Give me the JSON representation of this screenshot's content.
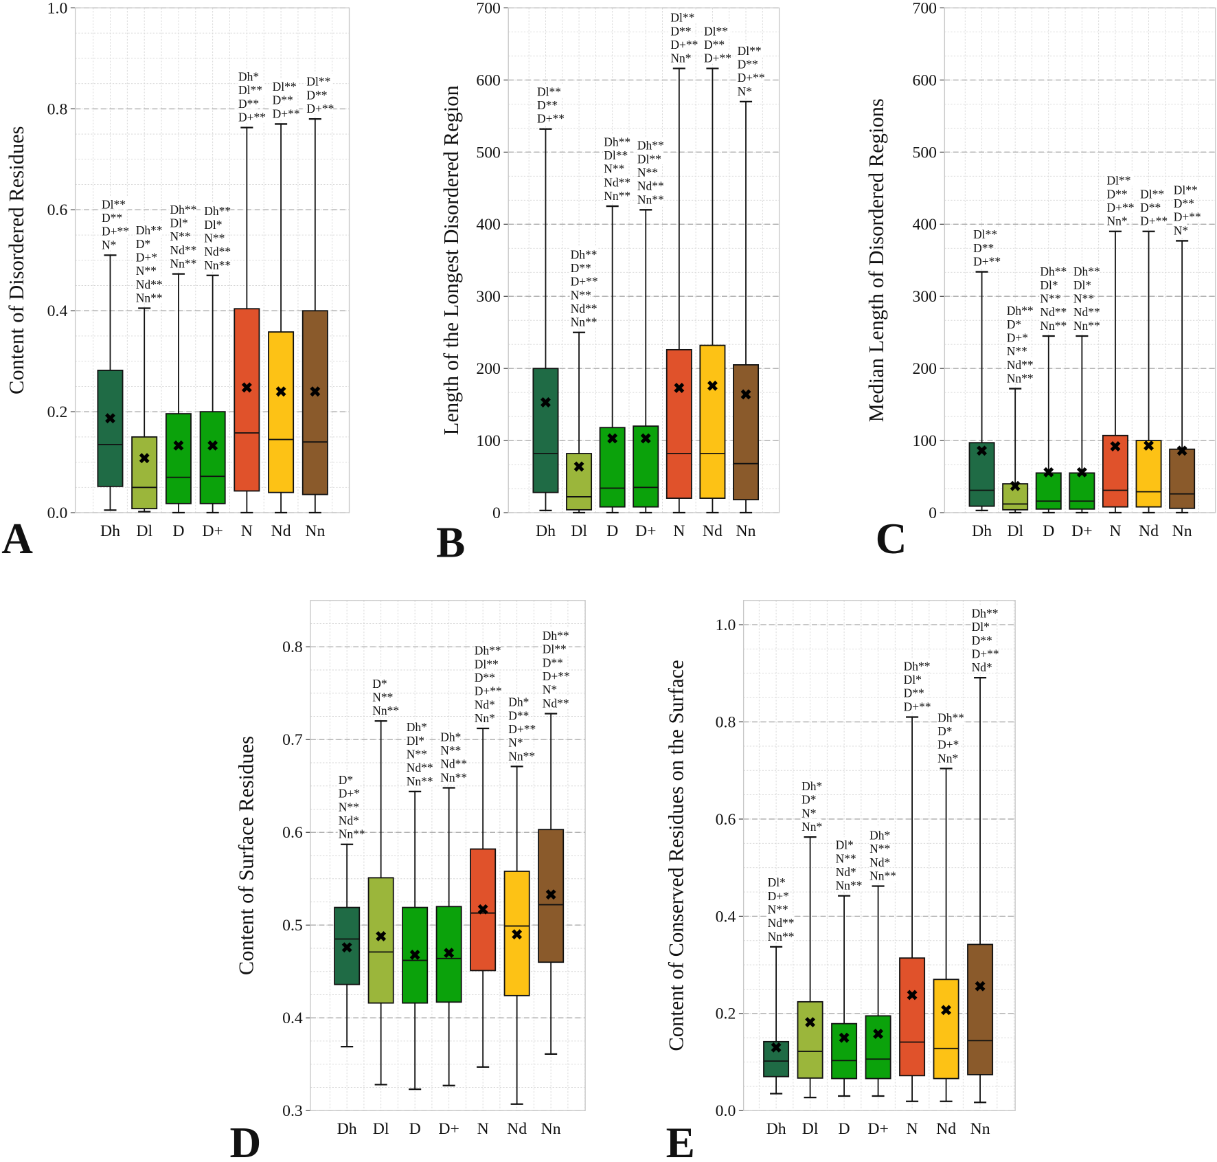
{
  "chart_data": [
    {
      "panel": "A",
      "type": "box",
      "ylabel": "Content of Disordered Residues",
      "ylim": [
        0,
        1.0
      ],
      "yticks": [
        "0.0",
        "0.2",
        "0.4",
        "0.6",
        "0.8",
        "1.0"
      ],
      "ytick_values": [
        0,
        0.2,
        0.4,
        0.6,
        0.8,
        1.0
      ],
      "minor_step": 0.05,
      "categories": [
        "Dh",
        "Dl",
        "D",
        "D+",
        "N",
        "Nd",
        "Nn"
      ],
      "boxes": [
        {
          "whislo": 0.005,
          "q1": 0.052,
          "med": 0.135,
          "q3": 0.282,
          "whishi": 0.51,
          "mean": 0.187,
          "annot": [
            "Dl**",
            "D**",
            "D+**",
            "N*"
          ]
        },
        {
          "whislo": 0.002,
          "q1": 0.008,
          "med": 0.05,
          "q3": 0.15,
          "whishi": 0.405,
          "mean": 0.108,
          "annot": [
            "Dh**",
            "D*",
            "D+*",
            "N**",
            "Nd**",
            "Nn**"
          ]
        },
        {
          "whislo": 0.0,
          "q1": 0.018,
          "med": 0.07,
          "q3": 0.196,
          "whishi": 0.473,
          "mean": 0.133,
          "annot": [
            "Dh**",
            "Dl*",
            "N**",
            "Nd**",
            "Nn**"
          ]
        },
        {
          "whislo": 0.0,
          "q1": 0.018,
          "med": 0.072,
          "q3": 0.2,
          "whishi": 0.47,
          "mean": 0.133,
          "annot": [
            "Dh**",
            "Dl*",
            "N**",
            "Nd**",
            "Nn**"
          ]
        },
        {
          "whislo": 0.0,
          "q1": 0.043,
          "med": 0.158,
          "q3": 0.404,
          "whishi": 0.763,
          "mean": 0.248,
          "annot": [
            "Dh*",
            "Dl**",
            "D**",
            "D+**"
          ]
        },
        {
          "whislo": 0.0,
          "q1": 0.04,
          "med": 0.145,
          "q3": 0.358,
          "whishi": 0.77,
          "mean": 0.24,
          "annot": [
            "Dl**",
            "D**",
            "D+**"
          ]
        },
        {
          "whislo": 0.0,
          "q1": 0.036,
          "med": 0.14,
          "q3": 0.4,
          "whishi": 0.78,
          "mean": 0.24,
          "annot": [
            "Dl**",
            "D**",
            "D+**"
          ]
        }
      ]
    },
    {
      "panel": "B",
      "type": "box",
      "ylabel": "Length of the Longest Disordered Region",
      "ylim": [
        0,
        700
      ],
      "yticks": [
        "0",
        "100",
        "200",
        "300",
        "400",
        "500",
        "600",
        "700"
      ],
      "ytick_values": [
        0,
        100,
        200,
        300,
        400,
        500,
        600,
        700
      ],
      "minor_step": 33.33,
      "categories": [
        "Dh",
        "Dl",
        "D",
        "D+",
        "N",
        "Nd",
        "Nn"
      ],
      "boxes": [
        {
          "whislo": 3,
          "q1": 28,
          "med": 82,
          "q3": 200,
          "whishi": 532,
          "mean": 153,
          "annot": [
            "Dl**",
            "D**",
            "D+**"
          ]
        },
        {
          "whislo": 0,
          "q1": 4,
          "med": 22,
          "q3": 82,
          "whishi": 250,
          "mean": 64,
          "annot": [
            "Dh**",
            "D**",
            "D+**",
            "N**",
            "Nd**",
            "Nn**"
          ]
        },
        {
          "whislo": 0,
          "q1": 8,
          "med": 34,
          "q3": 118,
          "whishi": 425,
          "mean": 103,
          "annot": [
            "Dh**",
            "Dl**",
            "N**",
            "Nd**",
            "Nn**"
          ]
        },
        {
          "whislo": 0,
          "q1": 8,
          "med": 35,
          "q3": 120,
          "whishi": 420,
          "mean": 103,
          "annot": [
            "Dh**",
            "Dl**",
            "N**",
            "Nd**",
            "Nn**"
          ]
        },
        {
          "whislo": 0,
          "q1": 20,
          "med": 82,
          "q3": 226,
          "whishi": 616,
          "mean": 173,
          "annot": [
            "Dl**",
            "D**",
            "D+**",
            "Nn*"
          ]
        },
        {
          "whislo": 0,
          "q1": 20,
          "med": 82,
          "q3": 232,
          "whishi": 616,
          "mean": 176,
          "annot": [
            "Dl**",
            "D**",
            "D+**"
          ]
        },
        {
          "whislo": 0,
          "q1": 18,
          "med": 68,
          "q3": 205,
          "whishi": 570,
          "mean": 164,
          "annot": [
            "Dl**",
            "D**",
            "D+**",
            "N*"
          ]
        }
      ]
    },
    {
      "panel": "C",
      "type": "box",
      "ylabel": "Median Length of Disordered Regions",
      "ylim": [
        0,
        700
      ],
      "yticks": [
        "0",
        "100",
        "200",
        "300",
        "400",
        "500",
        "600",
        "700"
      ],
      "ytick_values": [
        0,
        100,
        200,
        300,
        400,
        500,
        600,
        700
      ],
      "minor_step": 33.33,
      "categories": [
        "Dh",
        "Dl",
        "D",
        "D+",
        "N",
        "Nd",
        "Nn"
      ],
      "boxes": [
        {
          "whislo": 3,
          "q1": 9,
          "med": 31,
          "q3": 97,
          "whishi": 334,
          "mean": 86,
          "annot": [
            "Dl**",
            "D**",
            "D+**"
          ]
        },
        {
          "whislo": 0,
          "q1": 4,
          "med": 12,
          "q3": 40,
          "whishi": 172,
          "mean": 37,
          "annot": [
            "Dh**",
            "D*",
            "D+*",
            "N**",
            "Nd**",
            "Nn**"
          ]
        },
        {
          "whislo": 0,
          "q1": 5,
          "med": 16,
          "q3": 55,
          "whishi": 245,
          "mean": 56,
          "annot": [
            "Dh**",
            "Dl*",
            "N**",
            "Nd**",
            "Nn**"
          ]
        },
        {
          "whislo": 0,
          "q1": 5,
          "med": 16,
          "q3": 55,
          "whishi": 245,
          "mean": 56,
          "annot": [
            "Dh**",
            "Dl*",
            "N**",
            "Nd**",
            "Nn**"
          ]
        },
        {
          "whislo": 0,
          "q1": 8,
          "med": 31,
          "q3": 107,
          "whishi": 390,
          "mean": 92,
          "annot": [
            "Dl**",
            "D**",
            "D+**",
            "Nn*"
          ]
        },
        {
          "whislo": 0,
          "q1": 8,
          "med": 29,
          "q3": 100,
          "whishi": 390,
          "mean": 93,
          "annot": [
            "Dl**",
            "D**",
            "D+**"
          ]
        },
        {
          "whislo": 0,
          "q1": 6,
          "med": 26,
          "q3": 88,
          "whishi": 377,
          "mean": 86,
          "annot": [
            "Dl**",
            "D**",
            "D+**",
            "N*"
          ]
        }
      ]
    },
    {
      "panel": "D",
      "type": "box",
      "ylabel": "Content of Surface Residues",
      "ylim": [
        0.3,
        0.85
      ],
      "yticks": [
        "0.3",
        "0.4",
        "0.5",
        "0.6",
        "0.7",
        "0.8"
      ],
      "ytick_values": [
        0.3,
        0.4,
        0.5,
        0.6,
        0.7,
        0.8
      ],
      "minor_step": 0.025,
      "categories": [
        "Dh",
        "Dl",
        "D",
        "D+",
        "N",
        "Nd",
        "Nn"
      ],
      "boxes": [
        {
          "whislo": 0.369,
          "q1": 0.436,
          "med": 0.485,
          "q3": 0.519,
          "whishi": 0.587,
          "mean": 0.476,
          "annot": [
            "D*",
            "D+*",
            "N**",
            "Nd*",
            "Nn**"
          ]
        },
        {
          "whislo": 0.328,
          "q1": 0.416,
          "med": 0.471,
          "q3": 0.551,
          "whishi": 0.72,
          "mean": 0.488,
          "annot": [
            "D*",
            "N**",
            "Nn**"
          ]
        },
        {
          "whislo": 0.323,
          "q1": 0.416,
          "med": 0.462,
          "q3": 0.519,
          "whishi": 0.644,
          "mean": 0.468,
          "annot": [
            "Dh*",
            "Dl*",
            "N**",
            "Nd**",
            "Nn**"
          ]
        },
        {
          "whislo": 0.327,
          "q1": 0.417,
          "med": 0.464,
          "q3": 0.52,
          "whishi": 0.648,
          "mean": 0.47,
          "annot": [
            "Dh*",
            "N**",
            "Nd**",
            "Nn**"
          ]
        },
        {
          "whislo": 0.347,
          "q1": 0.451,
          "med": 0.513,
          "q3": 0.582,
          "whishi": 0.712,
          "mean": 0.517,
          "annot": [
            "Dh**",
            "Dl**",
            "D**",
            "D+**",
            "Nd*",
            "Nn*"
          ]
        },
        {
          "whislo": 0.307,
          "q1": 0.424,
          "med": 0.499,
          "q3": 0.558,
          "whishi": 0.671,
          "mean": 0.49,
          "annot": [
            "Dh*",
            "D**",
            "D+**",
            "N*",
            "Nn**"
          ]
        },
        {
          "whislo": 0.361,
          "q1": 0.46,
          "med": 0.522,
          "q3": 0.603,
          "whishi": 0.728,
          "mean": 0.533,
          "annot": [
            "Dh**",
            "Dl**",
            "D**",
            "D+**",
            "N*",
            "Nd**"
          ]
        }
      ]
    },
    {
      "panel": "E",
      "type": "box",
      "ylabel": "Content of Conserved Residues on the Surface",
      "ylim": [
        0,
        1.05
      ],
      "yticks": [
        "0.0",
        "0.2",
        "0.4",
        "0.6",
        "0.8",
        "1.0"
      ],
      "ytick_values": [
        0,
        0.2,
        0.4,
        0.6,
        0.8,
        1.0
      ],
      "minor_step": 0.05,
      "categories": [
        "Dh",
        "Dl",
        "D",
        "D+",
        "N",
        "Nd",
        "Nn"
      ],
      "boxes": [
        {
          "whislo": 0.035,
          "q1": 0.07,
          "med": 0.102,
          "q3": 0.142,
          "whishi": 0.337,
          "mean": 0.13,
          "annot": [
            "Dl*",
            "D+*",
            "N**",
            "Nd**",
            "Nn**"
          ]
        },
        {
          "whislo": 0.027,
          "q1": 0.067,
          "med": 0.122,
          "q3": 0.224,
          "whishi": 0.563,
          "mean": 0.182,
          "annot": [
            "Dh*",
            "D*",
            "N*",
            "Nn*"
          ]
        },
        {
          "whislo": 0.03,
          "q1": 0.066,
          "med": 0.103,
          "q3": 0.179,
          "whishi": 0.442,
          "mean": 0.15,
          "annot": [
            "Dl*",
            "N**",
            "Nd*",
            "Nn**"
          ]
        },
        {
          "whislo": 0.03,
          "q1": 0.066,
          "med": 0.106,
          "q3": 0.195,
          "whishi": 0.462,
          "mean": 0.158,
          "annot": [
            "Dh*",
            "N**",
            "Nd*",
            "Nn**"
          ]
        },
        {
          "whislo": 0.019,
          "q1": 0.072,
          "med": 0.141,
          "q3": 0.314,
          "whishi": 0.81,
          "mean": 0.238,
          "annot": [
            "Dh**",
            "Dl*",
            "D**",
            "D+**"
          ]
        },
        {
          "whislo": 0.019,
          "q1": 0.066,
          "med": 0.128,
          "q3": 0.27,
          "whishi": 0.704,
          "mean": 0.207,
          "annot": [
            "Dh**",
            "D*",
            "D+*",
            "Nn*"
          ]
        },
        {
          "whislo": 0.017,
          "q1": 0.074,
          "med": 0.144,
          "q3": 0.342,
          "whishi": 0.891,
          "mean": 0.256,
          "annot": [
            "Dh**",
            "Dl*",
            "D**",
            "D+**",
            "Nd*"
          ]
        }
      ]
    }
  ],
  "colors": {
    "Dh": "#1f6b45",
    "Dl": "#9bb63b",
    "D": "#0ba20b",
    "D+": "#0ba20b",
    "N": "#e0522b",
    "Nd": "#fdc215",
    "Nn": "#8a5a2b"
  }
}
